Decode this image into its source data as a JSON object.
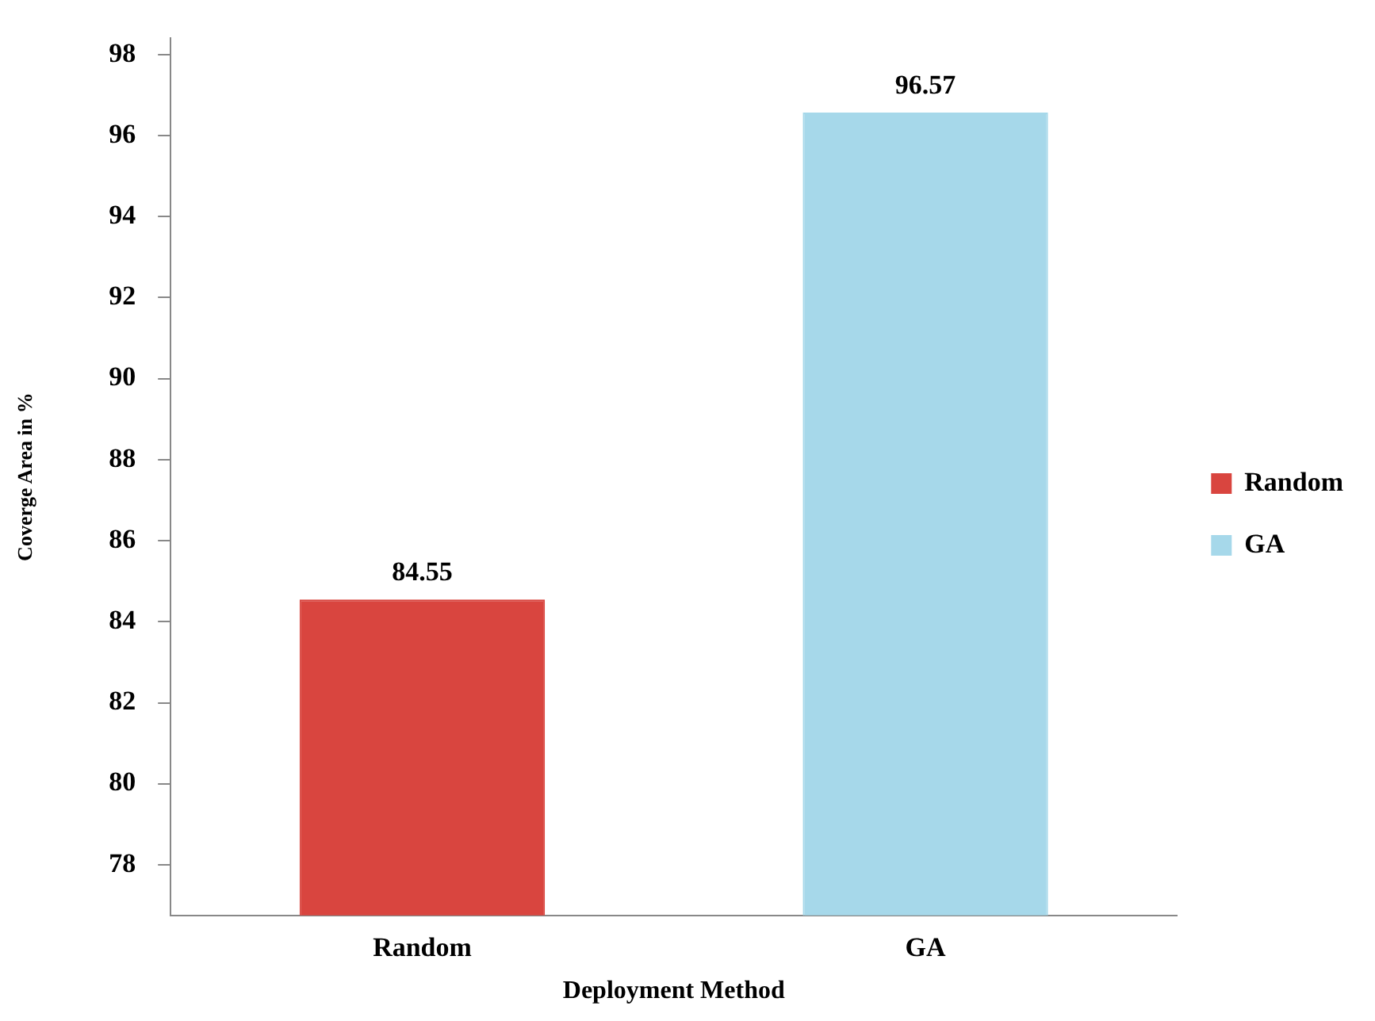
{
  "chart_data": {
    "type": "bar",
    "categories": [
      "Random",
      "GA"
    ],
    "series": [
      {
        "name": "Random",
        "color": "#d9453f",
        "values": [
          84.55,
          null
        ]
      },
      {
        "name": "GA",
        "color": "#a6d8ea",
        "values": [
          null,
          96.57
        ]
      }
    ],
    "xlabel": "Deployment Method",
    "ylabel": "Coverge Area in %",
    "ylim": [
      76.75,
      98.4
    ],
    "yticks": [
      78,
      80,
      82,
      84,
      86,
      88,
      90,
      92,
      94,
      96,
      98
    ],
    "grid": false,
    "legend": "right",
    "data_labels": true
  }
}
